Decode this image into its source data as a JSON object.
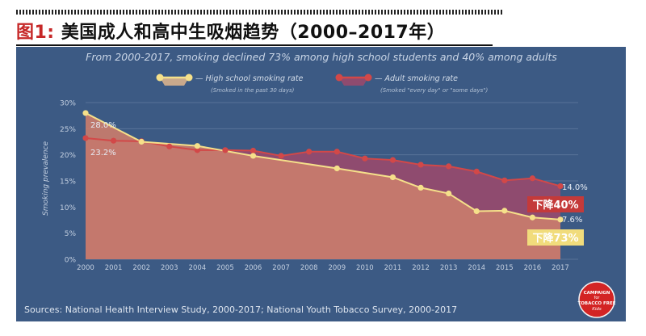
{
  "header": {
    "label": "图1:",
    "title": "美国成人和高中生吸烟趋势（2000–2017年）"
  },
  "chart_data": {
    "type": "area",
    "title": "From 2000-2017, smoking declined 73% among high school students and 40% among adults",
    "ylabel": "Smoking prevalence",
    "xlabel": "",
    "ylim": [
      0,
      30
    ],
    "yticks": [
      "0%",
      "5%",
      "10%",
      "15%",
      "20%",
      "25%",
      "30%"
    ],
    "categories": [
      "2000",
      "2001",
      "2002",
      "2003",
      "2004",
      "2005",
      "2006",
      "2007",
      "2008",
      "2009",
      "2010",
      "2011",
      "2012",
      "2013",
      "2014",
      "2015",
      "2016",
      "2017"
    ],
    "series": [
      {
        "name": "High school smoking rate",
        "note": "(Smoked in the past 30 days)",
        "color": "#f5e08a",
        "values": [
          28.0,
          null,
          22.5,
          null,
          21.7,
          null,
          19.8,
          null,
          null,
          17.4,
          null,
          15.7,
          13.7,
          12.6,
          9.2,
          9.3,
          8.0,
          7.6
        ]
      },
      {
        "name": "Adult smoking rate",
        "note": "(Smoked \"every day\" or \"some days\")",
        "color": "#d24848",
        "values": [
          23.2,
          22.7,
          22.6,
          21.6,
          20.9,
          20.9,
          20.8,
          19.8,
          20.6,
          20.6,
          19.3,
          19.0,
          18.1,
          17.8,
          16.8,
          15.1,
          15.5,
          14.0
        ]
      }
    ],
    "labels": {
      "hs_start": "28.0%",
      "adult_start": "23.2%",
      "adult_end": "14.0%",
      "hs_end": "7.6%",
      "adult_decline": "下降40%",
      "hs_decline": "下降73%"
    },
    "badge": [
      "CAMPAIGN",
      "for",
      "TOBACCO FREE",
      "Kids"
    ],
    "colors": {
      "background": "#3c5a84",
      "grid": "#587399",
      "adult_area": "#8f4b6f",
      "hs_area": "#c97c6c",
      "adult_line": "#d24848",
      "hs_line": "#f5e08a"
    },
    "source": "Sources: National Health Interview Study, 2000-2017; National Youth Tobacco Survey, 2000-2017"
  }
}
